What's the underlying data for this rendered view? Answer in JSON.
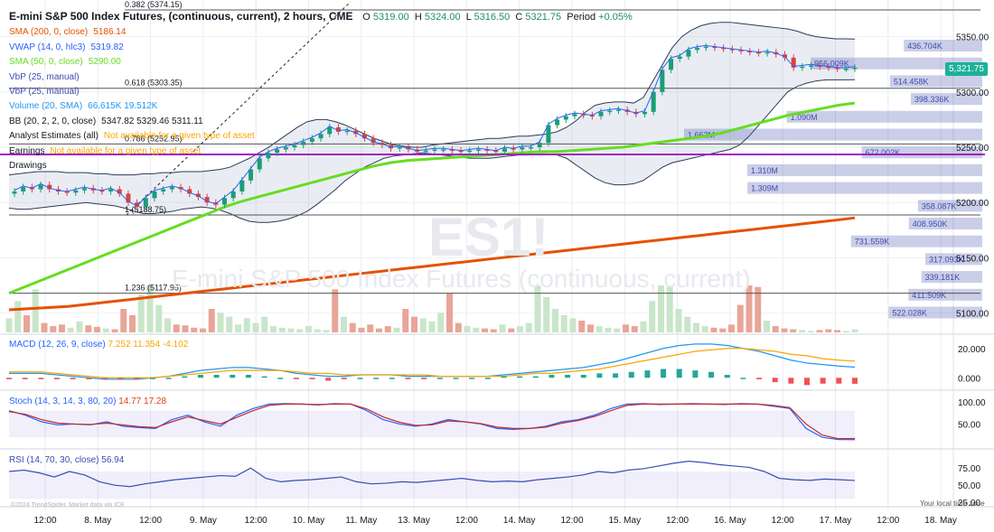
{
  "header": {
    "title": "E-mini S&P 500 Index Futures, (continuous, current), 2 hours, CME",
    "o_label": "O",
    "o_value": "5319.00",
    "h_label": "H",
    "h_value": "5324.00",
    "l_label": "L",
    "l_value": "5316.50",
    "c_label": "C",
    "c_value": "5321.75",
    "period_label": "Period",
    "period_value": "+0.05%"
  },
  "indicators": [
    {
      "label": "SMA (200, 0, close)",
      "value": "5186.14",
      "color": "#e65100"
    },
    {
      "label": "VWAP (14, 0, hlc3)",
      "value": "5319.82",
      "color": "#2962ff"
    },
    {
      "label": "SMA (50, 0, close)",
      "value": "5290.00",
      "color": "#66dd22"
    },
    {
      "label": "VbP (25, manual)",
      "value": "",
      "color": "#3d4db0"
    },
    {
      "label": "VbP (25, manual)",
      "value": "",
      "color": "#3d4db0"
    },
    {
      "label": "Volume (20, SMA)",
      "value": "66.615K 19.512K",
      "color": "#2196f3"
    },
    {
      "label": "BB (20, 2, 2, 0, close)",
      "value": "5347.82 5329.46 5311.11",
      "color": "#131722"
    },
    {
      "label": "Analyst Estimates (all)",
      "value": "Not available for a given type of asset",
      "color": "#131722"
    },
    {
      "label": "Earnings",
      "value": "Not available for a given type of asset",
      "color": "#131722"
    },
    {
      "label": "Drawings",
      "value": "",
      "color": "#131722"
    }
  ],
  "watermark": {
    "symbol": "ES1!",
    "name": "E-mini S&P 500 Index Futures (continuous, current)"
  },
  "price_tag": "5,321.75",
  "copyright": "©2024 TrendSpider. Market data via ICE",
  "timezone_label": "Your local time zone",
  "chart_data": [
    {
      "type": "candlestick",
      "panel": "price",
      "y_axis_ticks": [
        "5350.00",
        "5300.00",
        "5250.00",
        "5200.00",
        "5150.00",
        "5100.00"
      ],
      "ylim": [
        5085,
        5375
      ],
      "x_axis_ticks": [
        "12:00",
        "8. May",
        "12:00",
        "9. May",
        "12:00",
        "10. May",
        "11. May",
        "13. May",
        "12:00",
        "14. May",
        "12:00",
        "15. May",
        "12:00",
        "16. May",
        "12:00",
        "17. May",
        "12:00",
        "18. May"
      ],
      "close": [
        5210,
        5214,
        5212,
        5216,
        5212,
        5210,
        5209,
        5211,
        5213,
        5211,
        5210,
        5212,
        5208,
        5200,
        5196,
        5204,
        5210,
        5212,
        5214,
        5212,
        5208,
        5205,
        5200,
        5198,
        5204,
        5210,
        5220,
        5230,
        5240,
        5245,
        5248,
        5250,
        5252,
        5255,
        5258,
        5262,
        5268,
        5264,
        5265,
        5262,
        5258,
        5254,
        5252,
        5249,
        5250,
        5248,
        5246,
        5247,
        5248,
        5248,
        5247,
        5246,
        5247,
        5248,
        5247,
        5246,
        5249,
        5248,
        5250,
        5250,
        5254,
        5270,
        5275,
        5278,
        5280,
        5279,
        5278,
        5282,
        5283,
        5284,
        5282,
        5280,
        5282,
        5300,
        5320,
        5330,
        5332,
        5338,
        5340,
        5341,
        5340,
        5339,
        5338,
        5337,
        5336,
        5335,
        5336,
        5334,
        5331,
        5322,
        5323,
        5324,
        5323,
        5322,
        5321,
        5321,
        5322
      ],
      "bb_upper": [
        5225,
        5226,
        5227,
        5228,
        5228,
        5228,
        5227,
        5227,
        5227,
        5226,
        5226,
        5225,
        5225,
        5225,
        5226,
        5226,
        5227,
        5227,
        5228,
        5228,
        5228,
        5229,
        5230,
        5232,
        5236,
        5240,
        5245,
        5250,
        5256,
        5262,
        5268,
        5273,
        5275,
        5275,
        5273,
        5270,
        5266,
        5262,
        5258,
        5255,
        5252,
        5251,
        5250,
        5250,
        5252,
        5253,
        5254,
        5255,
        5256,
        5257,
        5258,
        5258,
        5259,
        5260,
        5260,
        5261,
        5262,
        5264,
        5268,
        5274,
        5282,
        5288,
        5290,
        5291,
        5291,
        5290,
        5295,
        5310,
        5325,
        5340,
        5350,
        5356,
        5360,
        5362,
        5363,
        5363,
        5362,
        5361,
        5360,
        5359,
        5358,
        5357,
        5355,
        5352,
        5350,
        5349,
        5348,
        5348,
        5347.8
      ],
      "bb_lower": [
        5195,
        5194,
        5194,
        5195,
        5196,
        5197,
        5198,
        5199,
        5200,
        5199,
        5198,
        5197,
        5195,
        5192,
        5190,
        5190,
        5191,
        5192,
        5194,
        5195,
        5196,
        5195,
        5193,
        5190,
        5186,
        5183,
        5182,
        5182,
        5183,
        5185,
        5188,
        5192,
        5198,
        5205,
        5212,
        5220,
        5226,
        5232,
        5236,
        5240,
        5242,
        5243,
        5244,
        5245,
        5244,
        5243,
        5242,
        5241,
        5240,
        5240,
        5240,
        5241,
        5242,
        5243,
        5243,
        5244,
        5244,
        5243,
        5240,
        5234,
        5228,
        5222,
        5218,
        5216,
        5216,
        5217,
        5220,
        5226,
        5232,
        5236,
        5238,
        5240,
        5242,
        5244,
        5246,
        5248,
        5252,
        5260,
        5270,
        5280,
        5290,
        5300,
        5305,
        5308,
        5310,
        5311,
        5311,
        5311,
        5311.1
      ],
      "sma50": [
        5118,
        5124,
        5130,
        5136,
        5142,
        5148,
        5154,
        5160,
        5166,
        5172,
        5178,
        5184,
        5190,
        5196,
        5201,
        5205,
        5209,
        5213,
        5217,
        5221,
        5225,
        5229,
        5233,
        5236,
        5238,
        5239,
        5240,
        5241,
        5242,
        5243,
        5244,
        5245,
        5246,
        5246,
        5247,
        5248,
        5249,
        5250,
        5252,
        5254,
        5256,
        5258,
        5260,
        5263,
        5267,
        5271,
        5275,
        5279,
        5282,
        5285,
        5288,
        5290
      ],
      "sma200": [
        5103,
        5104,
        5105,
        5106,
        5108,
        5110,
        5112,
        5114,
        5116,
        5118,
        5120,
        5122,
        5124,
        5126,
        5128,
        5130,
        5132,
        5134,
        5136,
        5138,
        5140,
        5142,
        5144,
        5146,
        5148,
        5150,
        5152,
        5154,
        5156,
        5158,
        5160,
        5162,
        5164,
        5166,
        5168,
        5170,
        5172,
        5174,
        5176,
        5178,
        5180,
        5182,
        5184,
        5186.14
      ]
    },
    {
      "type": "fibonacci",
      "levels": [
        {
          "label": "0.382 (5374.15)",
          "value": 5374.15
        },
        {
          "label": "0.618 (5303.35)",
          "value": 5303.35
        },
        {
          "label": "0.786 (5252.95)",
          "value": 5252.95
        },
        {
          "label": "1 (5188.75)",
          "value": 5188.75
        },
        {
          "label": "1.236 (5117.95)",
          "value": 5117.95
        }
      ]
    },
    {
      "type": "bar",
      "panel": "volume_by_price",
      "labels": [
        "436.704K",
        "956.009K",
        "514.458K",
        "398.336K",
        "1.090M",
        "1.662M",
        "672.002K",
        "1.310M",
        "1.309M",
        "358.087K",
        "408.950K",
        "731.559K",
        "317.093K",
        "339.181K",
        "411.509K",
        "522.028K"
      ],
      "values": [
        436.704,
        956.009,
        514.458,
        398.336,
        1090,
        1662,
        672.002,
        1310,
        1309,
        358.087,
        408.95,
        731.559,
        317.093,
        339.181,
        411.509,
        522.028
      ]
    },
    {
      "type": "bar",
      "panel": "volume",
      "values": [
        18,
        40,
        22,
        55,
        12,
        8,
        10,
        6,
        14,
        9,
        7,
        5,
        4,
        30,
        22,
        48,
        60,
        35,
        18,
        10,
        9,
        6,
        5,
        30,
        25,
        20,
        10,
        18,
        12,
        20,
        8,
        6,
        5,
        4,
        8,
        4,
        3,
        55,
        20,
        12,
        6,
        10,
        5,
        8,
        6,
        30,
        20,
        18,
        14,
        25,
        50,
        12,
        8,
        6,
        5,
        4,
        10,
        5,
        8,
        12,
        60,
        45,
        30,
        22,
        18,
        15,
        10,
        8,
        6,
        5,
        10,
        8,
        14,
        40,
        60,
        58,
        30,
        20,
        12,
        8,
        6,
        5,
        10,
        35,
        60,
        58,
        15,
        8,
        5,
        4,
        3,
        2,
        3,
        4,
        3,
        2,
        4
      ]
    },
    {
      "type": "line",
      "panel": "macd",
      "title": "MACD (12, 26, 9, close)",
      "values_text": "7.252 11.354 -4.102",
      "y_axis_ticks": [
        "20.000",
        "0.000"
      ],
      "series": [
        {
          "name": "MACD",
          "values": [
            3,
            3,
            3,
            2,
            1,
            0,
            -1,
            -1,
            -1,
            0,
            1,
            3,
            5,
            6,
            7,
            7,
            6,
            5,
            3,
            2,
            1,
            1,
            2,
            2,
            2,
            1,
            1,
            1,
            1,
            1,
            1,
            2,
            3,
            4,
            5,
            6,
            7,
            9,
            11,
            14,
            17,
            20,
            22,
            23,
            23,
            22,
            20,
            18,
            15,
            12,
            10,
            9,
            8,
            7.252
          ]
        },
        {
          "name": "Signal",
          "values": [
            4,
            4,
            4,
            3,
            2,
            1,
            0,
            0,
            0,
            0,
            1,
            2,
            3,
            4,
            5,
            5,
            5,
            5,
            4,
            3,
            3,
            2,
            2,
            2,
            2,
            2,
            2,
            1,
            1,
            1,
            1,
            1,
            2,
            3,
            3,
            4,
            5,
            6,
            8,
            10,
            12,
            14,
            16,
            18,
            19,
            20,
            20,
            19,
            18,
            16,
            15,
            13,
            12,
            11.354
          ]
        }
      ],
      "ylim": [
        -6,
        26
      ]
    },
    {
      "type": "line",
      "panel": "stoch",
      "title": "Stoch (14, 3, 14, 3, 80, 20)",
      "values_text": "14.77 17.28",
      "y_axis_ticks": [
        "100.00",
        "50.00"
      ],
      "series": [
        {
          "name": "%K",
          "values": [
            80,
            70,
            55,
            48,
            50,
            48,
            55,
            45,
            42,
            40,
            60,
            70,
            55,
            45,
            70,
            85,
            95,
            96,
            95,
            93,
            96,
            95,
            80,
            60,
            50,
            45,
            50,
            60,
            55,
            50,
            40,
            38,
            40,
            45,
            55,
            60,
            70,
            85,
            95,
            96,
            94,
            95,
            96,
            95,
            94,
            96,
            95,
            90,
            85,
            40,
            20,
            15,
            14.77
          ]
        },
        {
          "name": "%D",
          "values": [
            78,
            72,
            60,
            52,
            50,
            49,
            52,
            48,
            44,
            42,
            55,
            66,
            58,
            50,
            65,
            80,
            92,
            95,
            95,
            94,
            95,
            95,
            84,
            66,
            54,
            47,
            48,
            57,
            55,
            51,
            43,
            40,
            40,
            43,
            52,
            58,
            67,
            80,
            92,
            95,
            95,
            95,
            95,
            95,
            95,
            95,
            95,
            92,
            87,
            50,
            25,
            17,
            17.28
          ]
        }
      ],
      "ylim": [
        0,
        110
      ]
    },
    {
      "type": "line",
      "panel": "rsi",
      "title": "RSI (14, 70, 30, close)",
      "values_text": "56.94",
      "y_axis_ticks": [
        "75.00",
        "50.00",
        "25.00"
      ],
      "series": [
        {
          "name": "RSI",
          "values": [
            70,
            72,
            68,
            62,
            70,
            65,
            55,
            50,
            48,
            52,
            55,
            58,
            60,
            62,
            64,
            63,
            75,
            60,
            55,
            57,
            58,
            60,
            62,
            55,
            52,
            53,
            55,
            54,
            56,
            58,
            60,
            57,
            55,
            56,
            55,
            58,
            60,
            62,
            65,
            70,
            68,
            72,
            74,
            78,
            82,
            85,
            83,
            80,
            78,
            76,
            70,
            60,
            58,
            57,
            59,
            58,
            56.94
          ]
        }
      ],
      "ylim": [
        20,
        95
      ]
    }
  ]
}
